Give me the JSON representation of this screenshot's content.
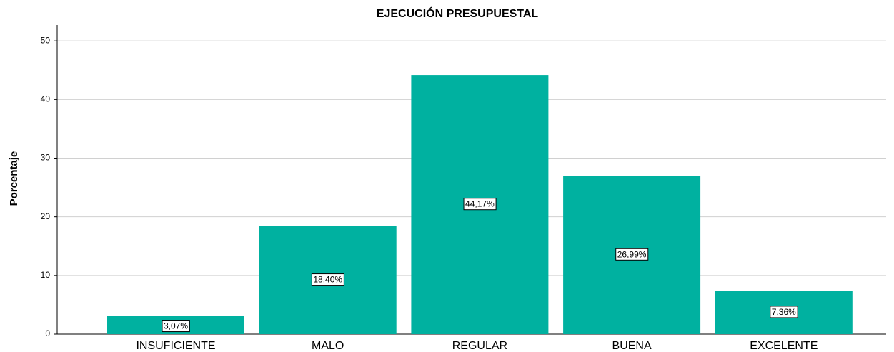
{
  "chart_data": {
    "type": "bar",
    "title": "EJECUCIÓN PRESUPUESTAL",
    "y_label": "Porcentaje",
    "categories": [
      "INSUFICIENTE",
      "MALO",
      "REGULAR",
      "BUENA",
      "EXCELENTE"
    ],
    "values": [
      3.07,
      18.4,
      44.17,
      26.99,
      7.36
    ],
    "value_labels": [
      "3,07%",
      "18,40%",
      "44,17%",
      "26,99%",
      "7,36%"
    ],
    "color": "#00b1a0",
    "ylim": [
      0,
      52.7
    ],
    "yticks": [
      0,
      10,
      20,
      30,
      40,
      50
    ],
    "grid": true
  }
}
